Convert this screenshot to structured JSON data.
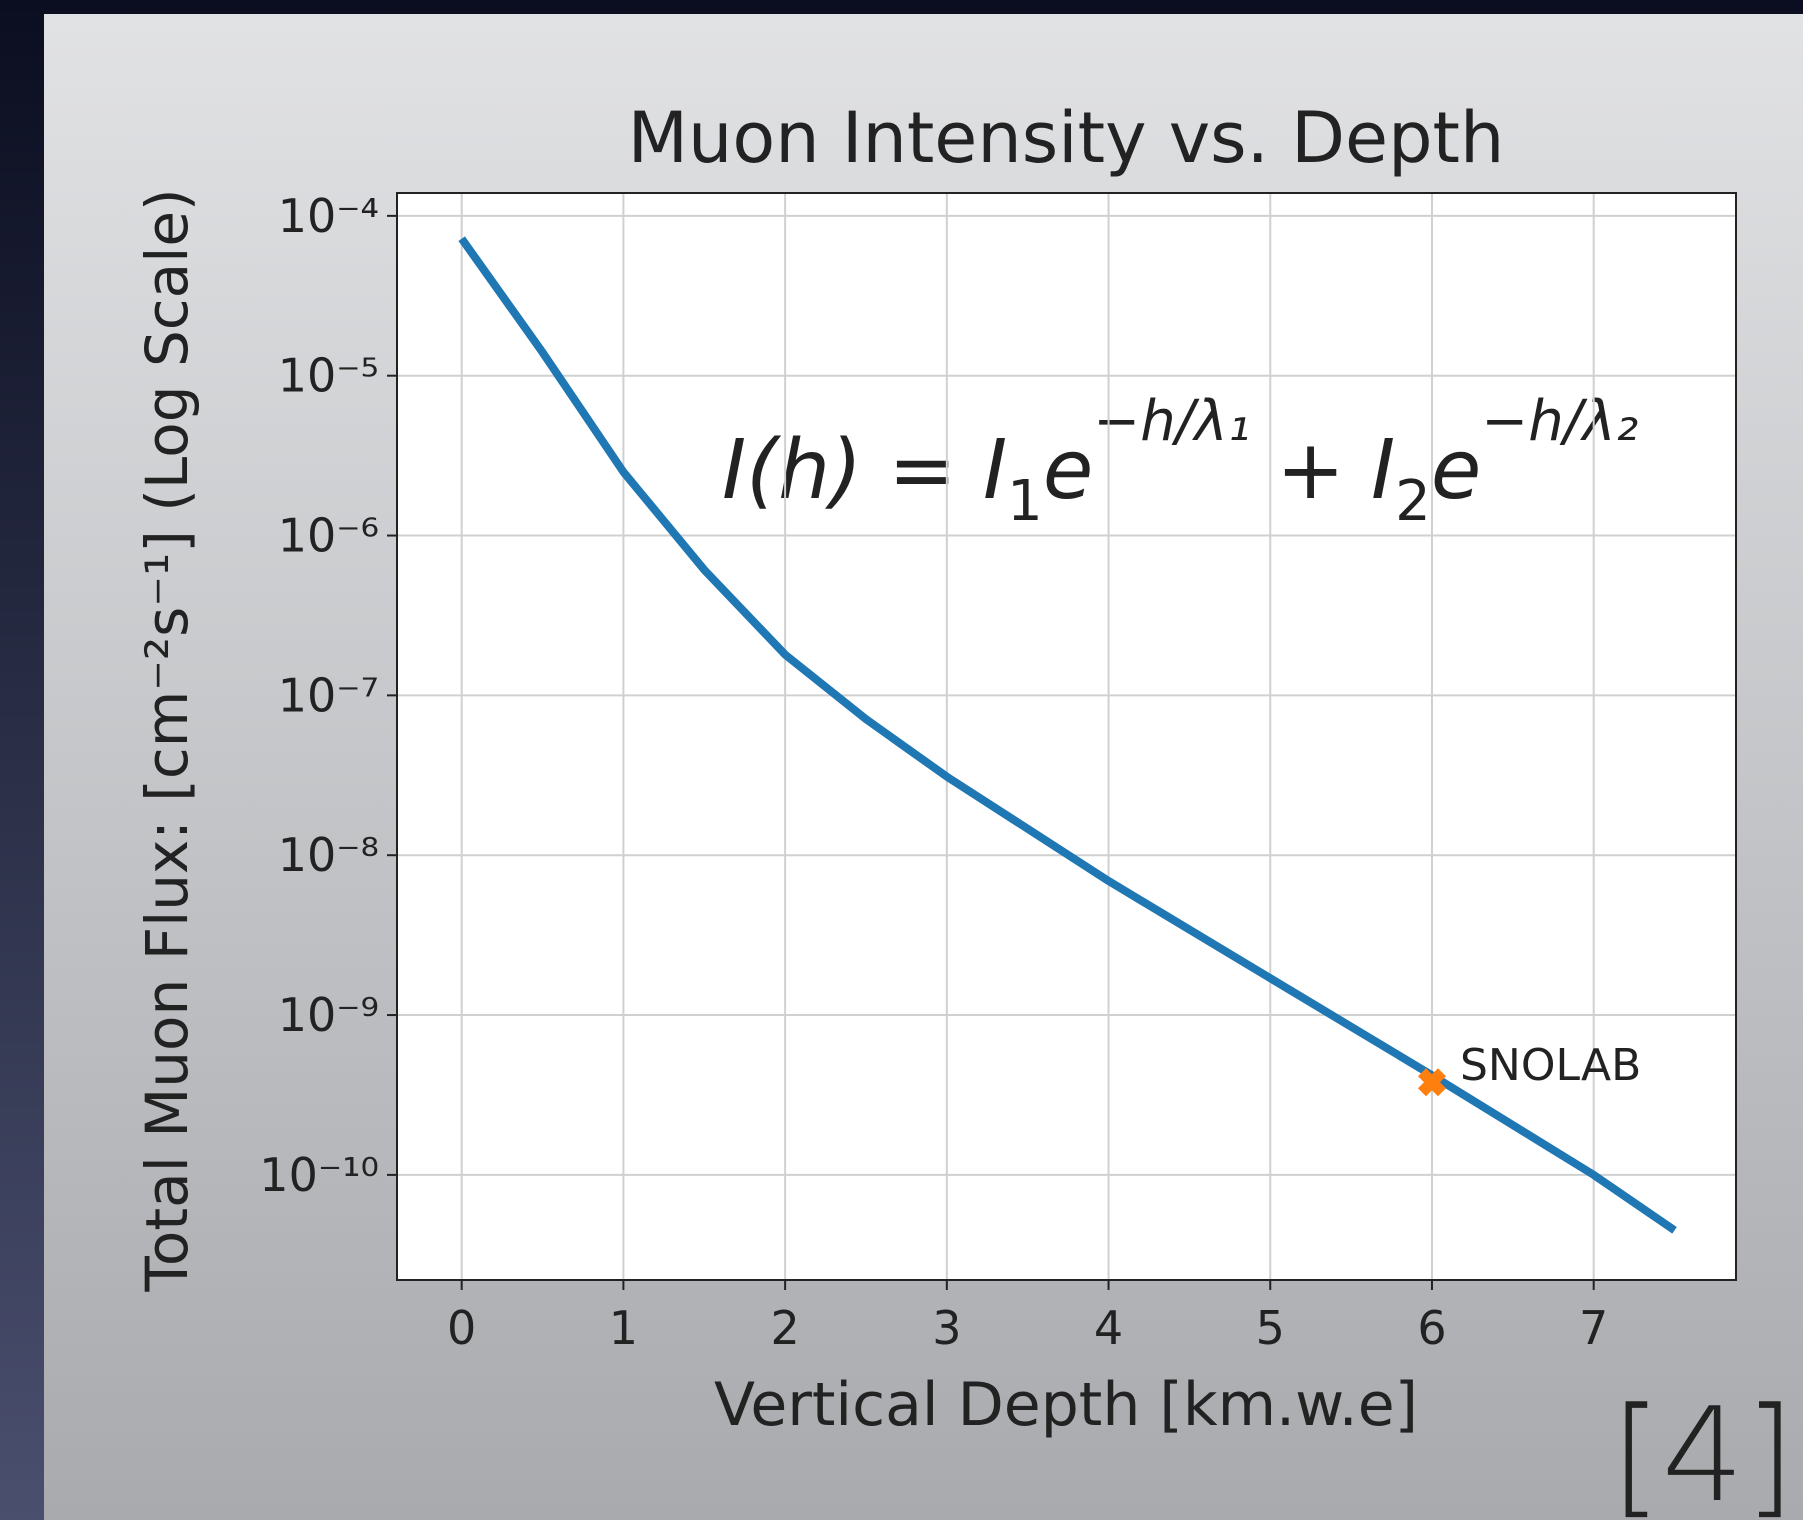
{
  "chart_data": {
    "type": "line",
    "title": "Muon Intensity vs. Depth",
    "x_label": "Vertical Depth [km.w.e]",
    "y_label": "Total Muon Flux: [cm⁻²s⁻¹] (Log Scale)",
    "x": [
      0,
      0.5,
      1,
      1.5,
      2,
      2.5,
      3,
      4,
      5,
      6,
      7,
      7.5
    ],
    "series": [
      {
        "color": "#1f77b4",
        "values": [
          7.2e-05,
          1.4e-05,
          2.5e-06,
          6.1e-07,
          1.8e-07,
          7.1e-08,
          3.1e-08,
          6.9e-09,
          1.7e-09,
          4.2e-10,
          1e-10,
          4.5e-11
        ]
      }
    ],
    "points": [
      {
        "x": 6,
        "y": 3.8e-10,
        "label": "SNOLAB",
        "color": "#ff7f0e",
        "marker": "X"
      }
    ],
    "xlim": [
      -0.4,
      7.88
    ],
    "ylim": [
      2.2e-11,
      0.000139
    ],
    "xticks": [
      0,
      1,
      2,
      3,
      4,
      5,
      6,
      7
    ],
    "yticks": [
      {
        "value": 0.0001,
        "label": "10⁻⁴"
      },
      {
        "value": 1e-05,
        "label": "10⁻⁵"
      },
      {
        "value": 1e-06,
        "label": "10⁻⁶"
      },
      {
        "value": 1e-07,
        "label": "10⁻⁷"
      },
      {
        "value": 1e-08,
        "label": "10⁻⁸"
      },
      {
        "value": 1e-09,
        "label": "10⁻⁹"
      },
      {
        "value": 1e-10,
        "label": "10⁻¹⁰"
      }
    ],
    "y_scale": "log",
    "grid": true,
    "annotation": [
      {
        "text": "I(h) = I"
      },
      {
        "text": "1",
        "shift": "sub"
      },
      {
        "text": "e"
      },
      {
        "text": "−h/λ₁",
        "shift": "sup"
      },
      {
        "text": " + I"
      },
      {
        "text": "2",
        "shift": "sub"
      },
      {
        "text": "e"
      },
      {
        "text": "−h/λ₂",
        "shift": "sup"
      }
    ],
    "citation": "[4]"
  }
}
